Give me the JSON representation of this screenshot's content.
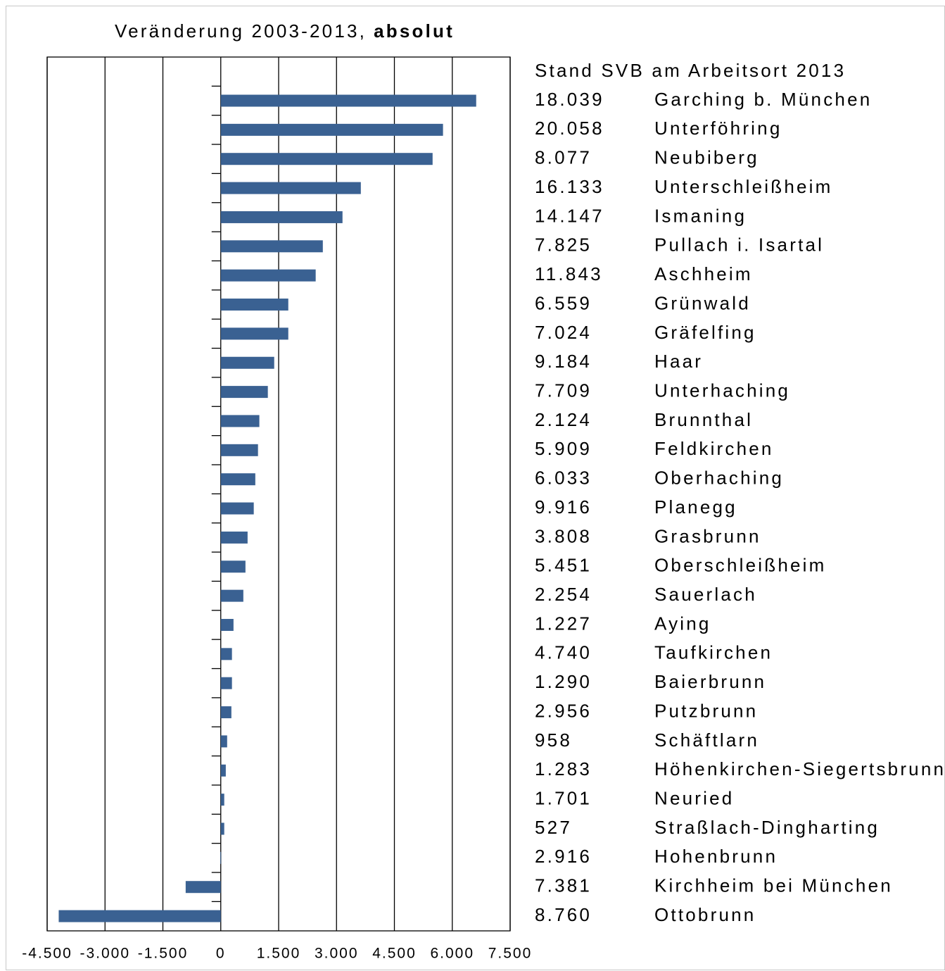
{
  "chart_data": {
    "type": "bar",
    "orientation": "horizontal",
    "title": "Veränderung 2003-2013,",
    "title_emphasis": "absolut",
    "table_title": "Stand SVB am Arbeitsort 2013",
    "categories": [
      "Garching b. München",
      "Unterföhring",
      "Neubiberg",
      "Unterschleißheim",
      "Ismaning",
      "Pullach i. Isartal",
      "Aschheim",
      "Grünwald",
      "Gräfelfing",
      "Haar",
      "Unterhaching",
      "Brunnthal",
      "Feldkirchen",
      "Oberhaching",
      "Planegg",
      "Grasbrunn",
      "Oberschleißheim",
      "Sauerlach",
      "Aying",
      "Taufkirchen",
      "Baierbrunn",
      "Putzbrunn",
      "Schäftlarn",
      "Höhenkirchen-Siegertsbrunn",
      "Neuried",
      "Straßlach-Dingharting",
      "Hohenbrunn",
      "Kirchheim bei München",
      "Ottobrunn"
    ],
    "stand_2013": [
      "18.039",
      "20.058",
      "8.077",
      "16.133",
      "14.147",
      "7.825",
      "11.843",
      "6.559",
      "7.024",
      "9.184",
      "7.709",
      "2.124",
      "5.909",
      "6.033",
      "9.916",
      "3.808",
      "5.451",
      "2.254",
      "1.227",
      "4.740",
      "1.290",
      "2.956",
      "958",
      "1.283",
      "1.701",
      "527",
      "2.916",
      "7.381",
      "8.760"
    ],
    "values": [
      6620,
      5760,
      5490,
      3630,
      3155,
      2645,
      2460,
      1750,
      1750,
      1385,
      1220,
      1000,
      965,
      895,
      855,
      695,
      640,
      585,
      330,
      290,
      290,
      275,
      165,
      130,
      90,
      90,
      -10,
      -910,
      -4200
    ],
    "color": "#3a6192",
    "xlim": [
      -4500,
      7500
    ],
    "xticks": [
      {
        "value": -4500,
        "label": "-4.500"
      },
      {
        "value": -3000,
        "label": "-3.000"
      },
      {
        "value": -1500,
        "label": "-1.500"
      },
      0,
      {
        "value": 1500,
        "label": "1.500"
      },
      {
        "value": 3000,
        "label": "3.000"
      },
      {
        "value": 4500,
        "label": "4.500"
      },
      {
        "value": 6000,
        "label": "6.000"
      },
      {
        "value": 7500,
        "label": "7.500"
      }
    ],
    "grid": true
  }
}
